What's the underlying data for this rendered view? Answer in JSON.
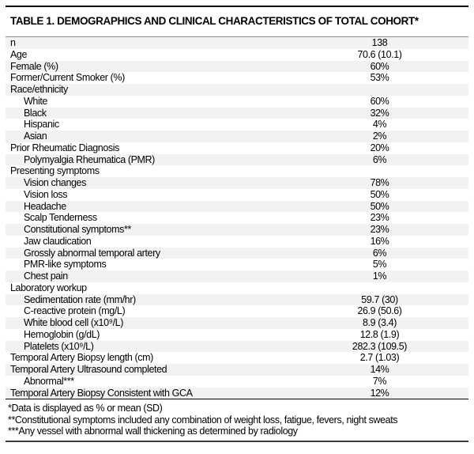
{
  "title": "TABLE 1. DEMOGRAPHICS AND CLINICAL CHARACTERISTICS OF TOTAL COHORT*",
  "table": {
    "rows": [
      {
        "label": "n",
        "value": "138",
        "indent": 0
      },
      {
        "label": "Age",
        "value": "70.6 (10.1)",
        "indent": 0
      },
      {
        "label": "Female (%)",
        "value": "60%",
        "indent": 0
      },
      {
        "label": "Former/Current Smoker (%)",
        "value": "53%",
        "indent": 0
      },
      {
        "label": "Race/ethnicity",
        "value": "",
        "indent": 0
      },
      {
        "label": "White",
        "value": "60%",
        "indent": 1
      },
      {
        "label": "Black",
        "value": "32%",
        "indent": 1
      },
      {
        "label": "Hispanic",
        "value": "4%",
        "indent": 1
      },
      {
        "label": "Asian",
        "value": "2%",
        "indent": 1
      },
      {
        "label": "Prior Rheumatic Diagnosis",
        "value": "20%",
        "indent": 0
      },
      {
        "label": "Polymyalgia Rheumatica (PMR)",
        "value": "6%",
        "indent": 1
      },
      {
        "label": "Presenting symptoms",
        "value": "",
        "indent": 0
      },
      {
        "label": "Vision changes",
        "value": "78%",
        "indent": 1
      },
      {
        "label": "Vision loss",
        "value": "50%",
        "indent": 1
      },
      {
        "label": "Headache",
        "value": "50%",
        "indent": 1
      },
      {
        "label": "Scalp Tenderness",
        "value": "23%",
        "indent": 1
      },
      {
        "label": "Constitutional symptoms**",
        "value": "23%",
        "indent": 1
      },
      {
        "label": "Jaw claudication",
        "value": "16%",
        "indent": 1
      },
      {
        "label": "Grossly abnormal temporal artery",
        "value": "6%",
        "indent": 1
      },
      {
        "label": "PMR-like symptoms",
        "value": "5%",
        "indent": 1
      },
      {
        "label": "Chest pain",
        "value": "1%",
        "indent": 1
      },
      {
        "label": "Laboratory workup",
        "value": "",
        "indent": 0
      },
      {
        "label": "Sedimentation rate (mm/hr)",
        "value": "59.7 (30)",
        "indent": 1
      },
      {
        "label": "C-reactive protein (mg/L)",
        "value": "26.9 (50.6)",
        "indent": 1
      },
      {
        "label": "White blood cell (x10⁹/L)",
        "value": "8.9 (3.4)",
        "indent": 1
      },
      {
        "label": "Hemoglobin (g/dL)",
        "value": "12.8 (1.9)",
        "indent": 1
      },
      {
        "label": "Platelets (x10⁹/L)",
        "value": "282.3 (109.5)",
        "indent": 1
      },
      {
        "label": "Temporal Artery Biopsy length (cm)",
        "value": "2.7 (1.03)",
        "indent": 0
      },
      {
        "label": "Temporal Artery Ultrasound completed",
        "value": "14%",
        "indent": 0
      },
      {
        "label": "Abnormal***",
        "value": "7%",
        "indent": 1
      },
      {
        "label": "Temporal Artery Biopsy Consistent with GCA",
        "value": "12%",
        "indent": 0
      }
    ]
  },
  "footnotes": [
    "*Data is displayed as % or mean (SD)",
    "**Constitutional symptoms included any combination of weight loss, fatigue, fevers, night sweats",
    "***Any vessel with abnormal wall thickening as determined by radiology"
  ],
  "colors": {
    "row_stripe": "#f2f2f2",
    "text": "#000000",
    "rule_heavy": "#000000",
    "rule_light": "#8c8c8c",
    "rule_bottom": "#3d3d3d"
  }
}
